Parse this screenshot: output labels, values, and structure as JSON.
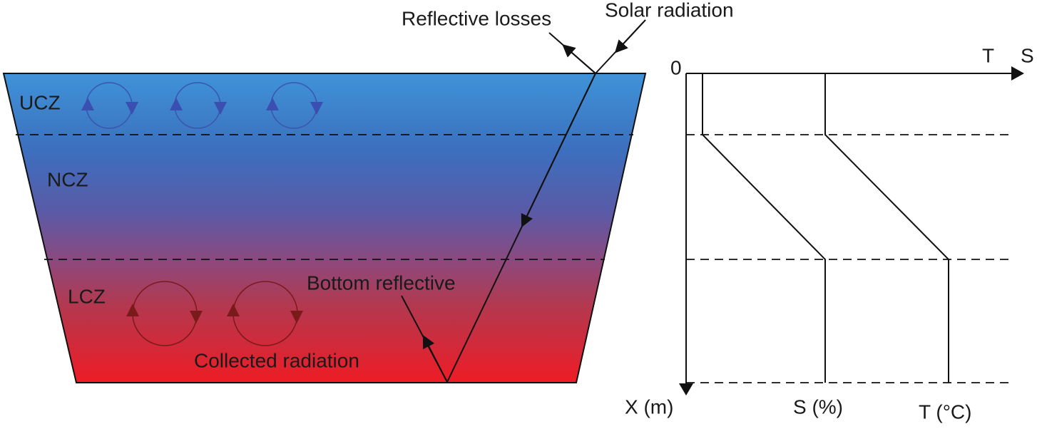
{
  "pond": {
    "zones": [
      "UCZ",
      "NCZ",
      "LCZ"
    ],
    "solar_label": "Solar radiation",
    "reflective_label": "Reflective losses",
    "bottom_label": "Bottom reflective",
    "collected_label": "Collected radiation"
  },
  "profile": {
    "origin": "0",
    "top_axis_labels": [
      "T",
      "S"
    ],
    "depth_axis": "X (m)",
    "curve_labels": [
      "S (%)",
      "T (°C)"
    ]
  }
}
